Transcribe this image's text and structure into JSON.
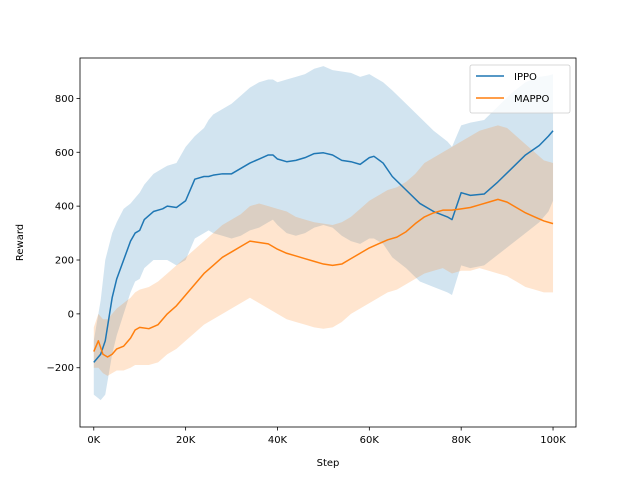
{
  "chart_data": {
    "type": "line",
    "title": "",
    "xlabel": "Step",
    "ylabel": "Reward",
    "xlim": [
      -3000,
      105000
    ],
    "ylim": [
      -420,
      950
    ],
    "x_ticks": [
      0,
      20000,
      40000,
      60000,
      80000,
      100000
    ],
    "x_tick_labels": [
      "0K",
      "20K",
      "40K",
      "60K",
      "80K",
      "100K"
    ],
    "y_ticks": [
      -200,
      0,
      200,
      400,
      600,
      800
    ],
    "y_tick_labels": [
      "−200",
      "0",
      "200",
      "400",
      "600",
      "800"
    ],
    "grid": false,
    "legend_position": "top-right",
    "series": [
      {
        "name": "IPPO",
        "color": "#1f77b4",
        "band_color": "#1f77b4",
        "x": [
          0,
          1500,
          2500,
          4000,
          5000,
          6500,
          8000,
          9000,
          10000,
          11000,
          13000,
          15000,
          16000,
          18000,
          20000,
          22000,
          24000,
          25000,
          26000,
          28000,
          30000,
          32000,
          34000,
          36000,
          38000,
          39000,
          40000,
          42000,
          44000,
          46000,
          48000,
          50000,
          52000,
          54000,
          56000,
          58000,
          60000,
          61000,
          63000,
          65000,
          68000,
          71000,
          74000,
          77000,
          78000,
          80000,
          82000,
          85000,
          88000,
          91000,
          94000,
          97000,
          99000,
          100000
        ],
        "mean": [
          -180,
          -150,
          -100,
          60,
          130,
          200,
          270,
          300,
          310,
          350,
          380,
          390,
          400,
          395,
          420,
          500,
          510,
          510,
          515,
          520,
          520,
          540,
          560,
          575,
          590,
          590,
          575,
          565,
          570,
          580,
          595,
          598,
          590,
          570,
          565,
          555,
          580,
          585,
          560,
          510,
          460,
          410,
          380,
          360,
          350,
          450,
          440,
          445,
          490,
          540,
          590,
          625,
          660,
          680
        ],
        "upper": [
          -100,
          50,
          200,
          300,
          340,
          390,
          410,
          430,
          450,
          480,
          520,
          540,
          550,
          560,
          620,
          660,
          690,
          720,
          740,
          760,
          780,
          810,
          840,
          860,
          870,
          870,
          860,
          870,
          880,
          890,
          910,
          920,
          905,
          900,
          895,
          880,
          890,
          880,
          860,
          830,
          780,
          730,
          680,
          640,
          620,
          700,
          710,
          720,
          770,
          820,
          860,
          880,
          885,
          890
        ],
        "lower": [
          -300,
          -320,
          -300,
          -150,
          -80,
          0,
          80,
          120,
          130,
          170,
          200,
          200,
          200,
          180,
          200,
          280,
          300,
          310,
          300,
          290,
          280,
          290,
          310,
          320,
          340,
          350,
          330,
          300,
          290,
          300,
          320,
          330,
          320,
          290,
          270,
          260,
          280,
          280,
          260,
          210,
          170,
          120,
          100,
          80,
          70,
          180,
          170,
          180,
          220,
          260,
          300,
          340,
          380,
          420
        ]
      },
      {
        "name": "MAPPO",
        "color": "#ff7f0e",
        "band_color": "#ff7f0e",
        "x": [
          0,
          1000,
          2000,
          3000,
          4000,
          5000,
          6500,
          8000,
          9000,
          10000,
          12000,
          14000,
          16000,
          18000,
          20000,
          22000,
          24000,
          26000,
          28000,
          30000,
          32000,
          34000,
          36000,
          38000,
          40000,
          42000,
          44000,
          46000,
          48000,
          50000,
          52000,
          54000,
          56000,
          58000,
          60000,
          62000,
          64000,
          66000,
          68000,
          70000,
          72000,
          74000,
          76000,
          78000,
          80000,
          82000,
          84000,
          86000,
          88000,
          90000,
          92000,
          94000,
          96000,
          98000,
          100000
        ],
        "mean": [
          -140,
          -100,
          -150,
          -160,
          -150,
          -130,
          -120,
          -90,
          -60,
          -50,
          -55,
          -40,
          0,
          30,
          70,
          110,
          150,
          180,
          210,
          230,
          250,
          270,
          265,
          260,
          240,
          225,
          215,
          205,
          195,
          185,
          180,
          185,
          205,
          225,
          245,
          260,
          275,
          285,
          305,
          335,
          360,
          375,
          385,
          385,
          390,
          395,
          405,
          415,
          425,
          415,
          395,
          375,
          360,
          345,
          335
        ],
        "upper": [
          -50,
          0,
          -20,
          -20,
          0,
          20,
          40,
          60,
          80,
          90,
          100,
          120,
          150,
          180,
          210,
          240,
          270,
          300,
          330,
          350,
          370,
          400,
          410,
          400,
          390,
          380,
          360,
          350,
          340,
          335,
          330,
          340,
          360,
          390,
          420,
          440,
          460,
          470,
          490,
          520,
          560,
          580,
          600,
          620,
          640,
          660,
          680,
          690,
          700,
          690,
          660,
          630,
          600,
          570,
          560
        ],
        "lower": [
          -200,
          -200,
          -220,
          -230,
          -220,
          -210,
          -210,
          -200,
          -190,
          -190,
          -190,
          -180,
          -150,
          -130,
          -100,
          -70,
          -40,
          -20,
          0,
          20,
          40,
          60,
          40,
          20,
          0,
          -20,
          -30,
          -40,
          -50,
          -55,
          -50,
          -30,
          0,
          20,
          40,
          60,
          80,
          90,
          110,
          130,
          150,
          160,
          170,
          150,
          160,
          160,
          170,
          160,
          150,
          140,
          120,
          100,
          90,
          80,
          80
        ]
      }
    ]
  }
}
